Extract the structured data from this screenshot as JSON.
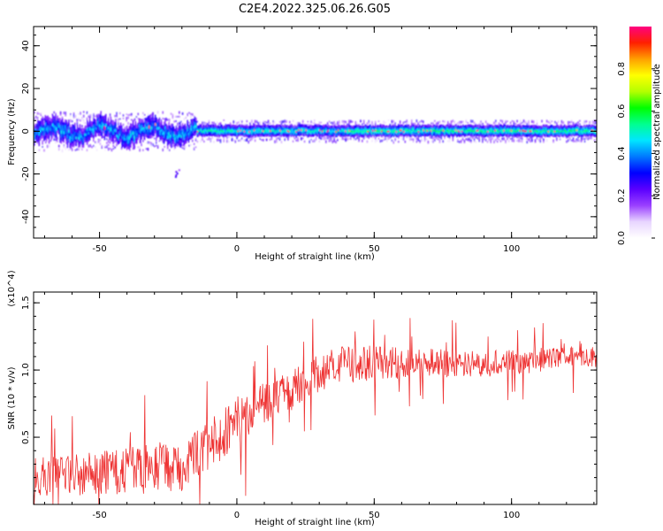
{
  "figure": {
    "title": "C2E4.2022.325.06.26.G05"
  },
  "chart_data": [
    {
      "type": "heatmap",
      "xlabel": "Height of straight line (km)",
      "ylabel": "Frequency (Hz)",
      "xlim": [
        -74,
        131
      ],
      "ylim": [
        -50,
        49
      ],
      "xticks": [
        -50,
        0,
        50,
        100
      ],
      "yticks": [
        -40,
        -20,
        0,
        20,
        40
      ],
      "colorbar": {
        "label": "Normalized spectral amplitude",
        "range": [
          0.0,
          1.0
        ],
        "ticks": [
          "0.0",
          "0.2",
          "0.4",
          "0.6",
          "0.8"
        ],
        "colormap": [
          "#ffffff",
          "#e8d5ff",
          "#9a40ff",
          "#5a00ff",
          "#0000ff",
          "#0078ff",
          "#00e6ff",
          "#00ff90",
          "#00ff00",
          "#b4ff00",
          "#ffff00",
          "#ffa000",
          "#ff2000",
          "#ff0080"
        ]
      },
      "ridge": {
        "x_range": [
          -74,
          131
        ],
        "center_frequency_hz": 0,
        "wobble_region_x": [
          -74,
          -15
        ],
        "wobble_amplitude_hz": 6,
        "peak_amplitude_region_x": [
          40,
          131
        ]
      },
      "outliers": [
        {
          "x": -22,
          "y_range": [
            -21,
            -17
          ]
        }
      ]
    },
    {
      "type": "line",
      "xlabel": "Height of straight line (km)",
      "ylabel": "SNR (10 * v/v)",
      "y_multiplier": "(x10^4)",
      "xlim": [
        -74,
        131
      ],
      "ylim": [
        0.0,
        1.58
      ],
      "xticks": [
        -50,
        0,
        50,
        100
      ],
      "yticks": [
        0.5,
        1.0,
        1.5
      ],
      "color": "#ee3333",
      "series": [
        {
          "x": [
            -74,
            -60,
            -40,
            -20,
            -10,
            0,
            10,
            20,
            30,
            40,
            60,
            80,
            100,
            120,
            131
          ],
          "y_mean": [
            0.2,
            0.22,
            0.24,
            0.3,
            0.45,
            0.62,
            0.75,
            0.85,
            0.98,
            1.05,
            1.05,
            1.05,
            1.05,
            1.1,
            1.1
          ],
          "y_noise": [
            0.15,
            0.16,
            0.18,
            0.2,
            0.2,
            0.18,
            0.16,
            0.15,
            0.14,
            0.14,
            0.12,
            0.1,
            0.1,
            0.08,
            0.08
          ]
        }
      ]
    }
  ]
}
